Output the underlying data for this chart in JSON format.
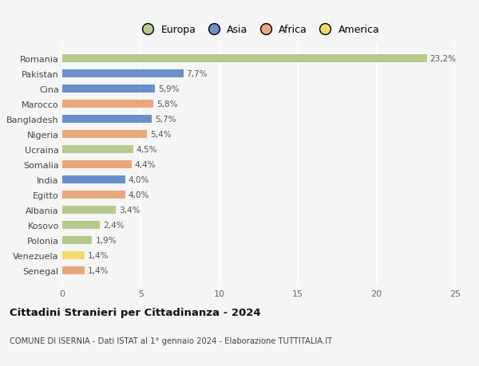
{
  "countries": [
    "Romania",
    "Pakistan",
    "Cina",
    "Marocco",
    "Bangladesh",
    "Nigeria",
    "Ucraina",
    "Somalia",
    "India",
    "Egitto",
    "Albania",
    "Kosovo",
    "Polonia",
    "Venezuela",
    "Senegal"
  ],
  "values": [
    23.2,
    7.7,
    5.9,
    5.8,
    5.7,
    5.4,
    4.5,
    4.4,
    4.0,
    4.0,
    3.4,
    2.4,
    1.9,
    1.4,
    1.4
  ],
  "labels": [
    "23,2%",
    "7,7%",
    "5,9%",
    "5,8%",
    "5,7%",
    "5,4%",
    "4,5%",
    "4,4%",
    "4,0%",
    "4,0%",
    "3,4%",
    "2,4%",
    "1,9%",
    "1,4%",
    "1,4%"
  ],
  "colors": [
    "#b5c98e",
    "#6b8fca",
    "#6b8fca",
    "#e8a87c",
    "#6b8fca",
    "#e8a87c",
    "#b5c98e",
    "#e8a87c",
    "#6b8fca",
    "#e8a87c",
    "#b5c98e",
    "#b5c98e",
    "#b5c98e",
    "#f5d76e",
    "#e8a87c"
  ],
  "legend_labels": [
    "Europa",
    "Asia",
    "Africa",
    "America"
  ],
  "legend_colors": [
    "#b5c98e",
    "#6b8fca",
    "#e8a87c",
    "#f5d76e"
  ],
  "title": "Cittadini Stranieri per Cittadinanza - 2024",
  "subtitle": "COMUNE DI ISERNIA - Dati ISTAT al 1° gennaio 2024 - Elaborazione TUTTITALIA.IT",
  "xlim": [
    0,
    25
  ],
  "xticks": [
    0,
    5,
    10,
    15,
    20,
    25
  ],
  "bg_color": "#f5f5f5",
  "grid_color": "#ffffff",
  "bar_height": 0.55
}
